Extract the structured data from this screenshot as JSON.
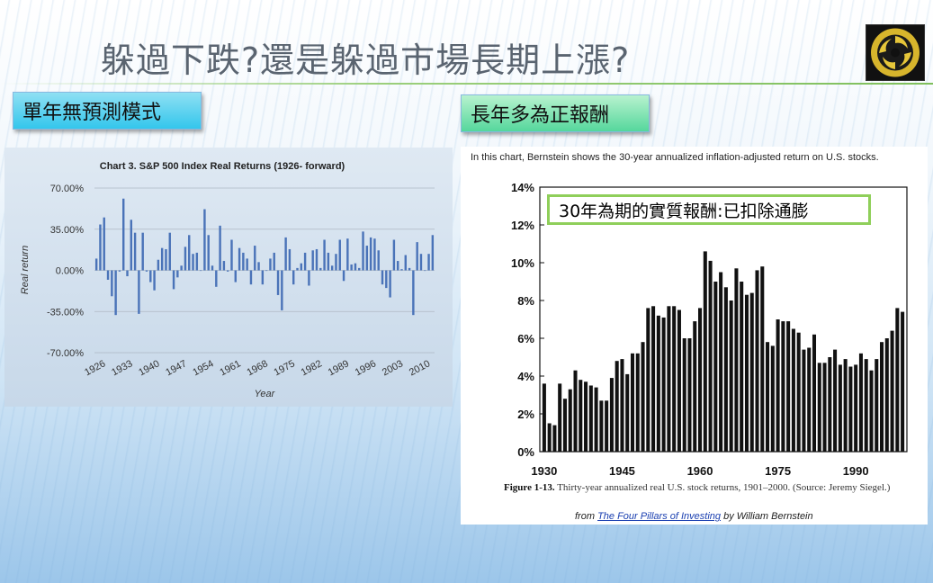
{
  "slide": {
    "title": "躲過下跌?還是躲過市場長期上漲?",
    "label_left": "單年無預測模式",
    "label_right": "長年多為正報酬",
    "overlay_text": "30年為期的實質報酬:已扣除通膨"
  },
  "colors": {
    "bar_left": "#4a73b8",
    "bar_right": "#111111",
    "accent_green": "#8fcf5a"
  },
  "right_chart": {
    "note": "In this chart, Bernstein shows the 30-year annualized inflation-adjusted return on U.S. stocks.",
    "figure_label": "Figure 1-13.",
    "caption_text": "Thirty-year annualized real U.S. stock returns, 1901–2000. (Source: Jeremy Siegel.)",
    "from_prefix": "from",
    "from_book": "The Four Pillars of Investing",
    "from_suffix": "by William Bernstein"
  },
  "chart_data": [
    {
      "type": "bar",
      "title": "Chart 3. S&P 500 Index Real Returns (1926- forward)",
      "xlabel": "Year",
      "ylabel": "Real return",
      "ylim": [
        -70,
        70
      ],
      "y_ticks": [
        "70.00%",
        "35.00%",
        "0.00%",
        "-35.00%",
        "-70.00%"
      ],
      "y_tick_values": [
        70,
        35,
        0,
        -35,
        -70
      ],
      "x_ticks": [
        "1926",
        "1933",
        "1940",
        "1947",
        "1954",
        "1961",
        "1968",
        "1975",
        "1982",
        "1989",
        "1996",
        "2003",
        "2010"
      ],
      "x_start": 1926,
      "values": [
        10,
        39,
        45,
        -8,
        -22,
        -38,
        -1,
        61,
        -5,
        43,
        32,
        -37,
        32,
        -1,
        -10,
        -17,
        9,
        19,
        18,
        32,
        -16,
        -6,
        4,
        20,
        30,
        14,
        15,
        0,
        52,
        30,
        4,
        -14,
        38,
        8,
        -1,
        26,
        -10,
        19,
        15,
        10,
        -12,
        21,
        7,
        -12,
        0,
        10,
        15,
        -21,
        -34,
        28,
        18,
        -12,
        2,
        6,
        15,
        -13,
        17,
        18,
        2,
        26,
        15,
        4,
        14,
        26,
        -9,
        27,
        5,
        6,
        2,
        33,
        21,
        28,
        27,
        17,
        -12,
        -15,
        -23,
        26,
        8,
        1,
        13,
        2,
        -38,
        24,
        14,
        0,
        14,
        30
      ],
      "grid": true,
      "legend": "none"
    },
    {
      "type": "bar",
      "title": "",
      "xlabel": "",
      "ylabel": "",
      "ylim": [
        0,
        14
      ],
      "y_ticks": [
        "14%",
        "12%",
        "10%",
        "8%",
        "6%",
        "4%",
        "2%",
        "0%"
      ],
      "y_tick_values": [
        14,
        12,
        10,
        8,
        6,
        4,
        2,
        0
      ],
      "x_ticks": [
        "1930",
        "1945",
        "1960",
        "1975",
        "1990"
      ],
      "x_tick_values": [
        1930,
        1945,
        1960,
        1975,
        1990
      ],
      "x_start": 1930,
      "values": [
        3.6,
        1.5,
        1.4,
        3.6,
        2.8,
        3.3,
        4.3,
        3.8,
        3.7,
        3.5,
        3.4,
        2.7,
        2.7,
        3.9,
        4.8,
        4.9,
        4.1,
        5.2,
        5.2,
        5.8,
        7.6,
        7.7,
        7.2,
        7.1,
        7.7,
        7.7,
        7.5,
        6.0,
        6.0,
        6.9,
        7.6,
        10.6,
        10.1,
        9.0,
        9.5,
        8.7,
        8.0,
        9.7,
        9.0,
        8.3,
        8.4,
        9.6,
        9.8,
        5.8,
        5.6,
        7.0,
        6.9,
        6.9,
        6.5,
        6.3,
        5.4,
        5.5,
        6.2,
        4.7,
        4.7,
        5.0,
        5.4,
        4.6,
        4.9,
        4.5,
        4.6,
        5.2,
        4.9,
        4.3,
        4.9,
        5.8,
        6.0,
        6.4,
        7.6,
        7.4
      ],
      "grid": false,
      "legend": "none"
    }
  ]
}
